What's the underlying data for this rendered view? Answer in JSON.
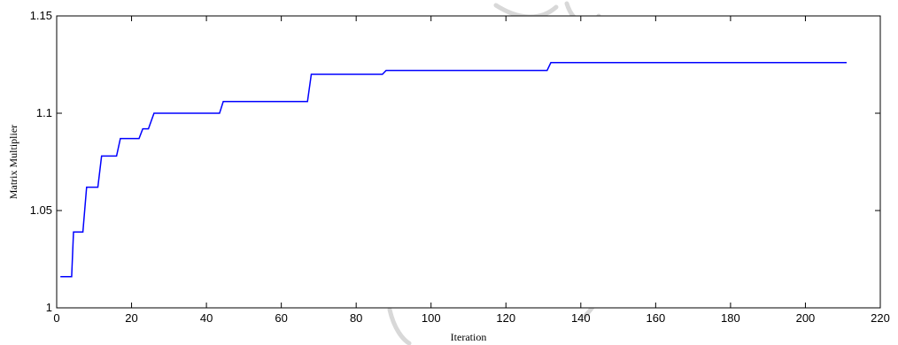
{
  "chart_data": {
    "type": "line",
    "title": "",
    "xlabel": "Iteration",
    "ylabel": "Matrix Multiplier",
    "xlim": [
      0,
      220
    ],
    "ylim": [
      1,
      1.15
    ],
    "xticks": [
      0,
      20,
      40,
      60,
      80,
      100,
      120,
      140,
      160,
      180,
      200,
      220
    ],
    "yticks": [
      1,
      1.05,
      1.1,
      1.15
    ],
    "xtick_labels": [
      "0",
      "20",
      "40",
      "60",
      "80",
      "100",
      "120",
      "140",
      "160",
      "180",
      "200",
      "220"
    ],
    "ytick_labels": [
      "1",
      "1.05",
      "1.1",
      "1.15"
    ],
    "grid": false,
    "line_color": "#0000ff",
    "series": [
      {
        "x": [
          1,
          4,
          4.5,
          7,
          8,
          11,
          12,
          16,
          17,
          22,
          23,
          24.5,
          26,
          43.5,
          44.5,
          67,
          68,
          87,
          88,
          131,
          132,
          211
        ],
        "y": [
          1.016,
          1.016,
          1.039,
          1.039,
          1.062,
          1.062,
          1.078,
          1.078,
          1.087,
          1.087,
          1.092,
          1.092,
          1.1,
          1.1,
          1.106,
          1.106,
          1.12,
          1.12,
          1.122,
          1.122,
          1.126,
          1.126
        ]
      }
    ]
  }
}
